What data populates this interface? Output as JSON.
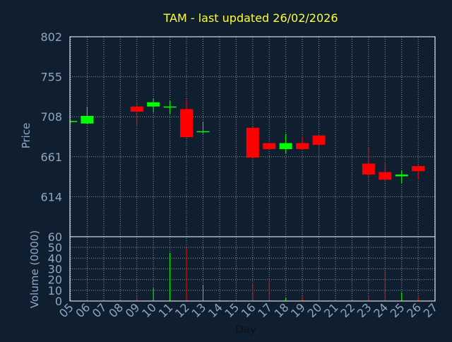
{
  "chart_data": {
    "type": "candlestick",
    "title": "TAM - last updated 26/02/2026",
    "colors": {
      "background": "#0f1f30",
      "axis_text": "#8fa7c4",
      "grid": "#8c97a3",
      "title": "#ffff33",
      "up": "#00ff00",
      "down": "#ff0000",
      "frame": "#ffffff"
    },
    "x": {
      "label": "Day",
      "ticks": [
        "05",
        "06",
        "07",
        "08",
        "09",
        "10",
        "11",
        "12",
        "13",
        "14",
        "15",
        "16",
        "17",
        "18",
        "19",
        "20",
        "21",
        "22",
        "23",
        "24",
        "25",
        "26",
        "27"
      ]
    },
    "price_panel": {
      "ylabel": "Price",
      "ylim": [
        567,
        802
      ],
      "ticks": [
        "614",
        "661",
        "708",
        "755",
        "802"
      ],
      "tick_values": [
        614,
        661,
        708,
        755,
        802
      ]
    },
    "volume_panel": {
      "ylabel": "Volume (0000)",
      "ylim": [
        0,
        60
      ],
      "ticks": [
        "0",
        "10",
        "20",
        "30",
        "40",
        "50",
        "60"
      ],
      "tick_values": [
        0,
        10,
        20,
        30,
        40,
        50,
        60
      ]
    },
    "series": [
      {
        "day": "05",
        "open": 702,
        "high": 703,
        "low": 701,
        "close": 703,
        "volume": 0
      },
      {
        "day": "06",
        "open": 700,
        "high": 720,
        "low": 700,
        "close": 709,
        "volume": 0
      },
      {
        "day": "09",
        "open": 720,
        "high": 725,
        "low": 697,
        "close": 714,
        "volume": 5
      },
      {
        "day": "10",
        "open": 720,
        "high": 729,
        "low": 713,
        "close": 725,
        "volume": 12
      },
      {
        "day": "11",
        "open": 720,
        "high": 727,
        "low": 711,
        "close": 720,
        "volume": 45
      },
      {
        "day": "12",
        "open": 717,
        "high": 728,
        "low": 683,
        "close": 684,
        "volume": 50
      },
      {
        "day": "13",
        "open": 690,
        "high": 702,
        "low": 688,
        "close": 691,
        "volume": 15
      },
      {
        "day": "16",
        "open": 695,
        "high": 697,
        "low": 659,
        "close": 660,
        "volume": 16
      },
      {
        "day": "17",
        "open": 677,
        "high": 677,
        "low": 669,
        "close": 670,
        "volume": 20
      },
      {
        "day": "18",
        "open": 670,
        "high": 688,
        "low": 665,
        "close": 677,
        "volume": 3
      },
      {
        "day": "19",
        "open": 677,
        "high": 685,
        "low": 669,
        "close": 670,
        "volume": 4
      },
      {
        "day": "20",
        "open": 686,
        "high": 687,
        "low": 655,
        "close": 675,
        "volume": 17
      },
      {
        "day": "23",
        "open": 653,
        "high": 672,
        "low": 638,
        "close": 640,
        "volume": 5
      },
      {
        "day": "24",
        "open": 643,
        "high": 655,
        "low": 632,
        "close": 634,
        "volume": 28
      },
      {
        "day": "25",
        "open": 638,
        "high": 645,
        "low": 630,
        "close": 640,
        "volume": 8
      },
      {
        "day": "26",
        "open": 650,
        "high": 651,
        "low": 634,
        "close": 644,
        "volume": 4
      }
    ]
  }
}
